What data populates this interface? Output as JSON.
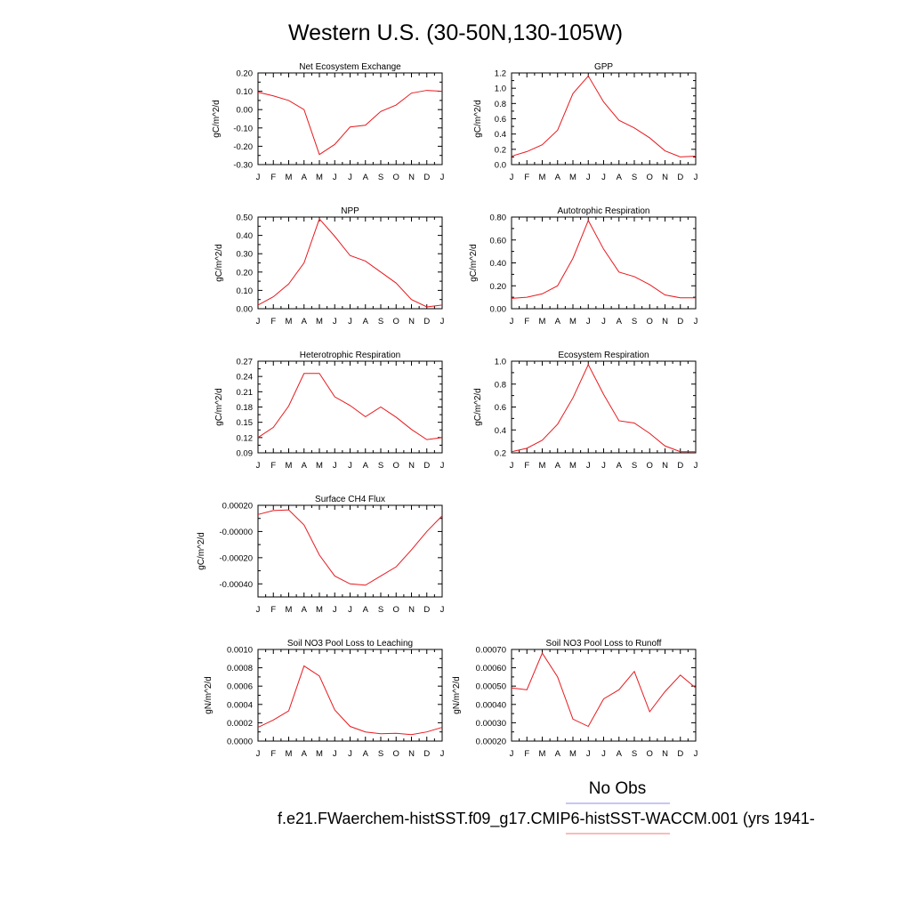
{
  "figure": {
    "title": "Western U.S. (30-50N,130-105W)",
    "legend": {
      "label": "No Obs",
      "obs_color": "#8c8cf0",
      "model_color": "#f07878"
    },
    "caption": "f.e21.FWaerchem-histSST.f09_g17.CMIP6-histSST-WACCM.001 (yrs 1941-"
  },
  "colors": {
    "series": "#e8191e"
  },
  "chart_data": [
    {
      "type": "line",
      "title": "Net Ecosystem Exchange",
      "ylabel": "gC/m^2/d",
      "categories": [
        "J",
        "F",
        "M",
        "A",
        "M",
        "J",
        "J",
        "A",
        "S",
        "O",
        "N",
        "D",
        "J"
      ],
      "ylim": [
        -0.3,
        0.2
      ],
      "yticks": [
        -0.3,
        -0.2,
        -0.1,
        0.0,
        0.1,
        0.2
      ],
      "ytick_labels": [
        "-0.30",
        "-0.20",
        "-0.10",
        "0.00",
        "0.10",
        "0.20"
      ],
      "series": [
        {
          "values": [
            0.095,
            0.075,
            0.05,
            0.0,
            -0.245,
            -0.19,
            -0.095,
            -0.085,
            -0.01,
            0.025,
            0.09,
            0.105,
            0.1
          ]
        }
      ]
    },
    {
      "type": "line",
      "title": "GPP",
      "ylabel": "gC/m^2/d",
      "categories": [
        "J",
        "F",
        "M",
        "A",
        "M",
        "J",
        "J",
        "A",
        "S",
        "O",
        "N",
        "D",
        "J"
      ],
      "ylim": [
        0.0,
        1.2
      ],
      "yticks": [
        0.0,
        0.2,
        0.4,
        0.6,
        0.8,
        1.0,
        1.2
      ],
      "ytick_labels": [
        "0.0",
        "0.2",
        "0.4",
        "0.6",
        "0.8",
        "1.0",
        "1.2"
      ],
      "series": [
        {
          "values": [
            0.11,
            0.17,
            0.26,
            0.45,
            0.93,
            1.16,
            0.82,
            0.58,
            0.48,
            0.35,
            0.18,
            0.1,
            0.11
          ]
        }
      ]
    },
    {
      "type": "line",
      "title": "NPP",
      "ylabel": "gC/m^2/d",
      "categories": [
        "J",
        "F",
        "M",
        "A",
        "M",
        "J",
        "J",
        "A",
        "S",
        "O",
        "N",
        "D",
        "J"
      ],
      "ylim": [
        0.0,
        0.5
      ],
      "yticks": [
        0.0,
        0.1,
        0.2,
        0.3,
        0.4,
        0.5
      ],
      "ytick_labels": [
        "0.00",
        "0.10",
        "0.20",
        "0.30",
        "0.40",
        "0.50"
      ],
      "series": [
        {
          "values": [
            0.02,
            0.065,
            0.135,
            0.25,
            0.49,
            0.395,
            0.29,
            0.26,
            0.2,
            0.14,
            0.05,
            0.01,
            0.02
          ]
        }
      ]
    },
    {
      "type": "line",
      "title": "Autotrophic Respiration",
      "ylabel": "gC/m^2/d",
      "categories": [
        "J",
        "F",
        "M",
        "A",
        "M",
        "J",
        "J",
        "A",
        "S",
        "O",
        "N",
        "D",
        "J"
      ],
      "ylim": [
        0.0,
        0.8
      ],
      "yticks": [
        0.0,
        0.2,
        0.4,
        0.6,
        0.8
      ],
      "ytick_labels": [
        "0.00",
        "0.20",
        "0.40",
        "0.60",
        "0.80"
      ],
      "series": [
        {
          "values": [
            0.09,
            0.1,
            0.13,
            0.2,
            0.44,
            0.77,
            0.52,
            0.32,
            0.28,
            0.21,
            0.12,
            0.095,
            0.095
          ]
        }
      ]
    },
    {
      "type": "line",
      "title": "Heterotrophic Respiration",
      "ylabel": "gC/m^2/d",
      "categories": [
        "J",
        "F",
        "M",
        "A",
        "M",
        "J",
        "J",
        "A",
        "S",
        "O",
        "N",
        "D",
        "J"
      ],
      "ylim": [
        0.09,
        0.27
      ],
      "yticks": [
        0.09,
        0.12,
        0.15,
        0.18,
        0.21,
        0.24,
        0.27
      ],
      "ytick_labels": [
        "0.09",
        "0.12",
        "0.15",
        "0.18",
        "0.21",
        "0.24",
        "0.27"
      ],
      "series": [
        {
          "values": [
            0.12,
            0.14,
            0.182,
            0.246,
            0.246,
            0.2,
            0.183,
            0.161,
            0.18,
            0.16,
            0.136,
            0.116,
            0.12
          ]
        }
      ]
    },
    {
      "type": "line",
      "title": "Ecosystem Respiration",
      "ylabel": "gC/m^2/d",
      "categories": [
        "J",
        "F",
        "M",
        "A",
        "M",
        "J",
        "J",
        "A",
        "S",
        "O",
        "N",
        "D",
        "J"
      ],
      "ylim": [
        0.2,
        1.0
      ],
      "yticks": [
        0.2,
        0.4,
        0.6,
        0.8,
        1.0
      ],
      "ytick_labels": [
        "0.2",
        "0.4",
        "0.6",
        "0.8",
        "1.0"
      ],
      "series": [
        {
          "values": [
            0.21,
            0.24,
            0.31,
            0.45,
            0.68,
            0.97,
            0.71,
            0.48,
            0.46,
            0.37,
            0.26,
            0.21,
            0.21
          ]
        }
      ]
    },
    {
      "type": "line",
      "title": "Surface CH4 Flux",
      "ylabel": "gC/m^2/d",
      "categories": [
        "J",
        "F",
        "M",
        "A",
        "M",
        "J",
        "J",
        "A",
        "S",
        "O",
        "N",
        "D",
        "J"
      ],
      "ylim": [
        -0.0005,
        0.0002
      ],
      "yticks": [
        -0.0004,
        -0.0002,
        0.0,
        0.0002
      ],
      "ytick_labels": [
        "-0.00040",
        "-0.00020",
        "-0.00000",
        "0.00020"
      ],
      "series": [
        {
          "values": [
            0.00013,
            0.00016,
            0.000165,
            5e-05,
            -0.00018,
            -0.00034,
            -0.0004,
            -0.00041,
            -0.00034,
            -0.00027,
            -0.00014,
            0.0,
            0.00012
          ]
        }
      ]
    },
    {
      "type": "line",
      "title": "Soil NO3 Pool Loss to Leaching",
      "ylabel": "gN/m^2/d",
      "categories": [
        "J",
        "F",
        "M",
        "A",
        "M",
        "J",
        "J",
        "A",
        "S",
        "O",
        "N",
        "D",
        "J"
      ],
      "ylim": [
        0.0,
        0.001
      ],
      "yticks": [
        0.0,
        0.0002,
        0.0004,
        0.0006,
        0.0008,
        0.001
      ],
      "ytick_labels": [
        "0.0000",
        "0.0002",
        "0.0004",
        "0.0006",
        "0.0008",
        "0.0010"
      ],
      "series": [
        {
          "values": [
            0.00015,
            0.00023,
            0.00033,
            0.00082,
            0.00071,
            0.00034,
            0.00016,
            0.0001,
            8e-05,
            8.5e-05,
            7e-05,
            0.0001,
            0.00015
          ]
        }
      ]
    },
    {
      "type": "line",
      "title": "Soil NO3 Pool Loss to Runoff",
      "ylabel": "gN/m^2/d",
      "categories": [
        "J",
        "F",
        "M",
        "A",
        "M",
        "J",
        "J",
        "A",
        "S",
        "O",
        "N",
        "D",
        "J"
      ],
      "ylim": [
        0.0002,
        0.0007
      ],
      "yticks": [
        0.0002,
        0.0003,
        0.0004,
        0.0005,
        0.0006,
        0.0007
      ],
      "ytick_labels": [
        "0.00020",
        "0.00030",
        "0.00040",
        "0.00050",
        "0.00060",
        "0.00070"
      ],
      "series": [
        {
          "values": [
            0.00049,
            0.00048,
            0.00068,
            0.00055,
            0.00032,
            0.00028,
            0.00043,
            0.00048,
            0.00058,
            0.00036,
            0.00047,
            0.00056,
            0.00049
          ]
        }
      ]
    }
  ]
}
